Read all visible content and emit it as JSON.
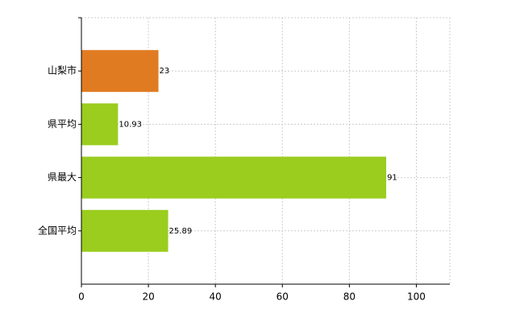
{
  "chart_data": {
    "type": "bar",
    "orientation": "horizontal",
    "categories": [
      "山梨市",
      "県平均",
      "県最大",
      "全国平均"
    ],
    "values": [
      23,
      10.93,
      91,
      25.89
    ],
    "colors": [
      "#e07b22",
      "#9acd1e",
      "#9acd1e",
      "#9acd1e"
    ],
    "xlim": [
      0,
      110
    ],
    "xticks": [
      0,
      20,
      40,
      60,
      80,
      100
    ],
    "grid": true
  }
}
